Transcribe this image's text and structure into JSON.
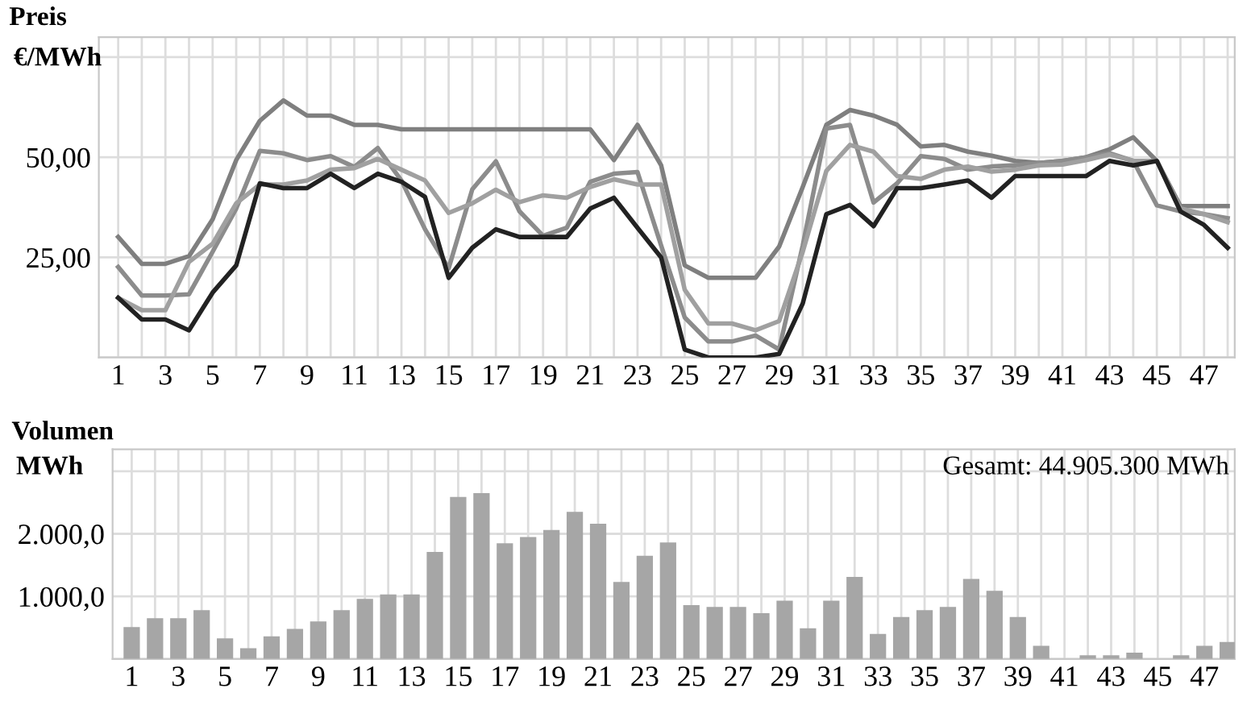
{
  "chart_data": [
    {
      "type": "line",
      "title": "Preis",
      "ylabel": "€/MWh",
      "categories": [
        "1",
        null,
        "3",
        null,
        "5",
        null,
        "7",
        null,
        "9",
        null,
        "11",
        null,
        "13",
        null,
        "15",
        null,
        "17",
        null,
        "19",
        null,
        "21",
        null,
        "23",
        null,
        "25",
        null,
        "27",
        null,
        "29",
        null,
        "31",
        null,
        "33",
        null,
        "35",
        null,
        "37",
        null,
        "39",
        null,
        "41",
        null,
        "43",
        null,
        "45",
        null,
        "47",
        null
      ],
      "series": [
        {
          "color": "#7f7f7f",
          "values": [
            30.1,
            23.4,
            23.4,
            25.3,
            34.5,
            49.3,
            59.1,
            64.2,
            60.4,
            60.4,
            58.1,
            58.1,
            57.0,
            57.0,
            57.0,
            57.0,
            57.0,
            57.0,
            57.0,
            57.0,
            57.0,
            49.3,
            58.1,
            48.0,
            23.0,
            19.9,
            19.9,
            19.9,
            27.7,
            42.6,
            58.1,
            61.8,
            60.4,
            58.1,
            52.7,
            53.1,
            51.4,
            50.4,
            49.1,
            48.6,
            49.1,
            50.0,
            52.0,
            55.0,
            49.1,
            37.8,
            37.8,
            37.8
          ]
        },
        {
          "color": "#8c8c8c",
          "values": [
            22.6,
            15.5,
            15.5,
            15.8,
            26.4,
            37.2,
            51.6,
            51.0,
            49.3,
            50.3,
            47.6,
            52.3,
            44.2,
            32.0,
            22.3,
            42.0,
            49.0,
            36.5,
            30.4,
            32.4,
            43.9,
            45.9,
            46.3,
            28.0,
            10.0,
            4.0,
            4.0,
            5.5,
            2.0,
            28.0,
            57.2,
            58.1,
            38.7,
            43.5,
            50.3,
            49.6,
            46.9,
            47.7,
            48.0,
            48.6,
            49.1,
            50.0,
            51.0,
            49.1,
            38.0,
            36.5,
            35.8,
            34.8
          ]
        },
        {
          "color": "#a0a0a0",
          "values": [
            14.9,
            11.8,
            11.8,
            23.9,
            28.4,
            38.5,
            43.2,
            43.2,
            44.2,
            46.9,
            47.3,
            49.6,
            46.9,
            44.2,
            36.1,
            38.5,
            41.9,
            38.8,
            40.5,
            39.9,
            42.6,
            44.5,
            43.2,
            43.2,
            16.9,
            8.5,
            8.5,
            6.8,
            9.1,
            26.4,
            46.6,
            53.1,
            51.4,
            45.3,
            44.6,
            46.9,
            47.7,
            46.4,
            46.9,
            48.0,
            48.2,
            49.3,
            50.7,
            49.1,
            49.1,
            37.2,
            35.8,
            33.8
          ]
        },
        {
          "color": "#222222",
          "values": [
            14.9,
            9.5,
            9.5,
            6.8,
            16.2,
            23.0,
            43.5,
            42.3,
            42.3,
            45.9,
            42.3,
            45.9,
            43.9,
            40.1,
            19.9,
            27.4,
            32.0,
            30.1,
            30.1,
            30.1,
            37.2,
            39.9,
            32.4,
            25.0,
            2.0,
            0,
            0,
            0,
            0.9,
            13.5,
            35.8,
            38.1,
            32.8,
            42.3,
            42.3,
            43.2,
            44.2,
            39.9,
            45.3,
            45.3,
            45.3,
            45.3,
            49.1,
            48.0,
            49.1,
            36.5,
            33.1,
            27.4
          ]
        }
      ],
      "ylim": [
        0,
        80
      ],
      "yticks": [
        {
          "value": 0,
          "label": null
        },
        {
          "value": 25,
          "label": "25,00"
        },
        {
          "value": 50,
          "label": "50,00"
        },
        {
          "value": 75,
          "label": null
        }
      ],
      "grid": true,
      "marker": "none",
      "line_style": "solid"
    },
    {
      "type": "bar",
      "title": "Volumen",
      "ylabel": "MWh",
      "categories": [
        "1",
        null,
        "3",
        null,
        "5",
        null,
        "7",
        null,
        "9",
        null,
        "11",
        null,
        "13",
        null,
        "15",
        null,
        "17",
        null,
        "19",
        null,
        "21",
        null,
        "23",
        null,
        "25",
        null,
        "27",
        null,
        "29",
        null,
        "31",
        null,
        "33",
        null,
        "35",
        null,
        "37",
        null,
        "39",
        null,
        "41",
        null,
        "43",
        null,
        "45",
        null,
        "47",
        null
      ],
      "values": [
        510,
        650,
        650,
        780,
        330,
        170,
        360,
        480,
        600,
        780,
        960,
        1030,
        1030,
        1710,
        2590,
        2650,
        1850,
        1950,
        2060,
        2350,
        2160,
        1230,
        1650,
        1860,
        860,
        830,
        830,
        730,
        930,
        490,
        930,
        1310,
        400,
        670,
        780,
        830,
        1280,
        1090,
        670,
        210,
        0,
        60,
        60,
        100,
        0,
        60,
        210,
        270
      ],
      "color": "#a6a6a6",
      "ylim": [
        0,
        3350
      ],
      "yticks": [
        {
          "value": 0,
          "label": null
        },
        {
          "value": 1000,
          "label": "1.000,0"
        },
        {
          "value": 2000,
          "label": "2.000,0"
        },
        {
          "value": 3000,
          "label": null
        }
      ],
      "grid": true,
      "annotations": [
        "Gesamt: 44.905.300 MWh"
      ]
    }
  ]
}
